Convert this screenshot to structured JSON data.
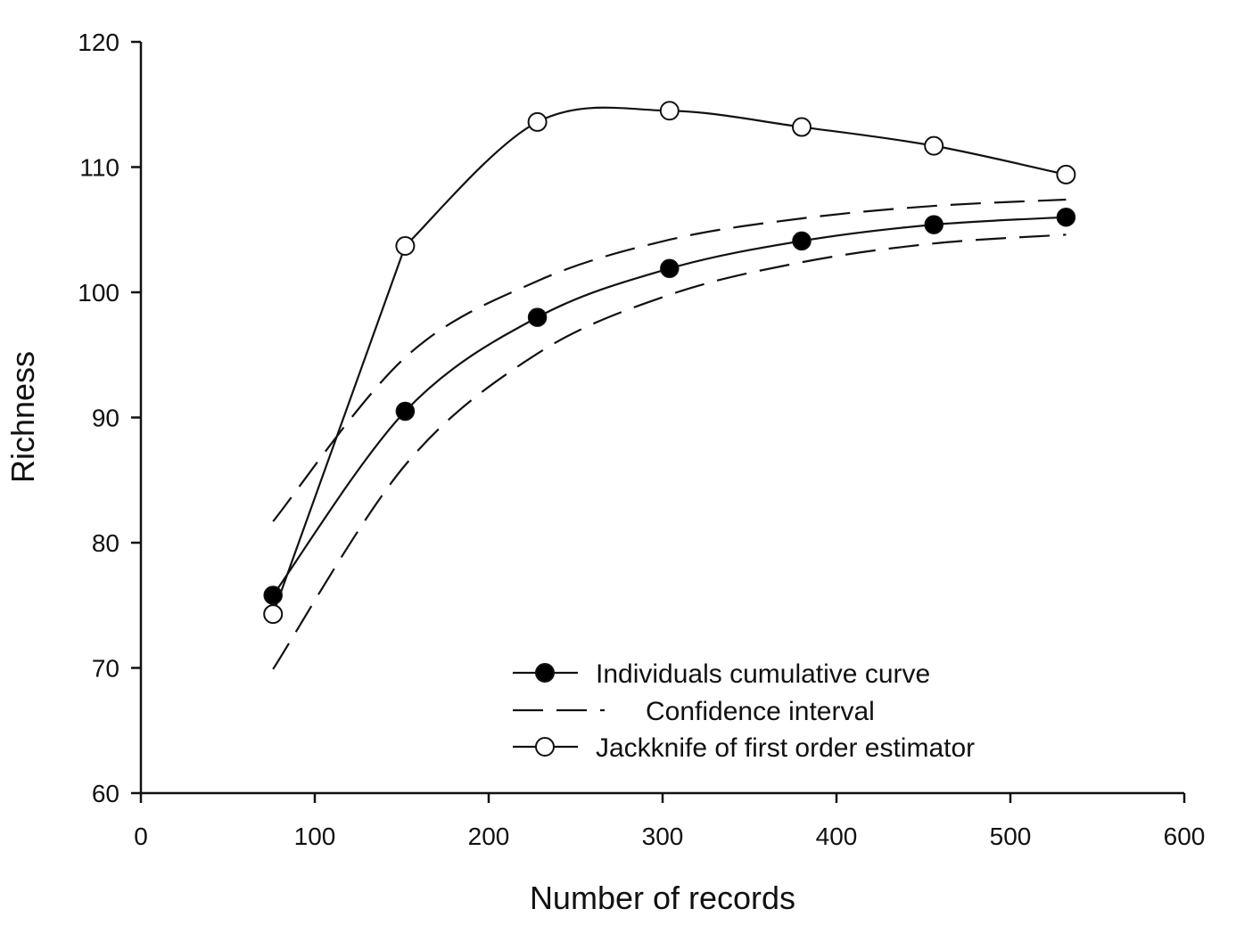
{
  "chart_data": {
    "type": "line",
    "title": "",
    "xlabel": "Number of records",
    "ylabel": "Richness",
    "xlim": [
      0,
      600
    ],
    "ylim": [
      60,
      120
    ],
    "xticks": [
      0,
      100,
      200,
      300,
      400,
      500,
      600
    ],
    "yticks": [
      60,
      70,
      80,
      90,
      100,
      110,
      120
    ],
    "x_tick_labels": [
      "0",
      "100",
      "200",
      "300",
      "400",
      "500",
      "600"
    ],
    "y_tick_labels": [
      "60",
      "70",
      "80",
      "90",
      "100",
      "110",
      "120"
    ],
    "grid": false,
    "legend_position": "bottom-center",
    "series": [
      {
        "name": "Individuals cumulative curve",
        "marker": "filled-circle",
        "line": "solid",
        "x": [
          76,
          152,
          228,
          304,
          380,
          456,
          532
        ],
        "y": [
          75.8,
          90.5,
          98.0,
          101.9,
          104.1,
          105.4,
          106.0
        ]
      },
      {
        "name": "Confidence interval",
        "marker": "none",
        "line": "dashed",
        "upper": {
          "x": [
            76,
            152,
            228,
            304,
            380,
            456,
            532
          ],
          "y": [
            81.7,
            94.8,
            100.9,
            104.2,
            105.9,
            106.9,
            107.4
          ]
        },
        "lower": {
          "x": [
            76,
            152,
            228,
            304,
            380,
            456,
            532
          ],
          "y": [
            69.9,
            86.2,
            95.1,
            99.8,
            102.4,
            103.9,
            104.6
          ]
        }
      },
      {
        "name": "Jackknife of first order estimator",
        "marker": "open-circle",
        "line": "solid",
        "x": [
          76,
          152,
          228,
          304,
          380,
          456,
          532
        ],
        "y": [
          74.3,
          103.7,
          113.6,
          114.5,
          113.2,
          111.7,
          109.4
        ]
      }
    ],
    "colors": {
      "line": "#111111",
      "marker_fill_open": "#ffffff",
      "marker_fill_filled": "#000000"
    }
  }
}
